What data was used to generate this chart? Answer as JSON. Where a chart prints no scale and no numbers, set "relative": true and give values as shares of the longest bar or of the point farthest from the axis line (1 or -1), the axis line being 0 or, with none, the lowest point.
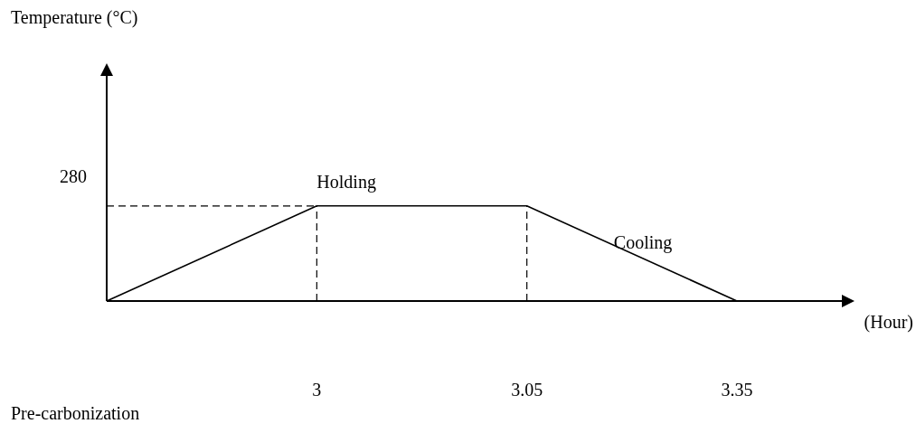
{
  "chart_data": {
    "type": "line",
    "xlabel": "(Hour)",
    "categories": [
      null,
      "3",
      "3.05",
      "3.35"
    ],
    "values": [
      0,
      1,
      1,
      0
    ],
    "relative": true,
    "color": "#000000",
    "marker": "none",
    "line_style": "solid",
    "ref_lines": [
      {
        "axis": "y",
        "value": 1,
        "line_style": "dashed"
      },
      {
        "axis": "x",
        "value": "3",
        "line_style": "dashed"
      },
      {
        "axis": "x",
        "value": "3.05",
        "line_style": "dashed"
      }
    ],
    "annotations": [
      "Temperature (°C)",
      "280",
      {
        "text": "Holding",
        "x": "3",
        "y": 1
      },
      "Cooling",
      "Pre-carbonization"
    ]
  }
}
